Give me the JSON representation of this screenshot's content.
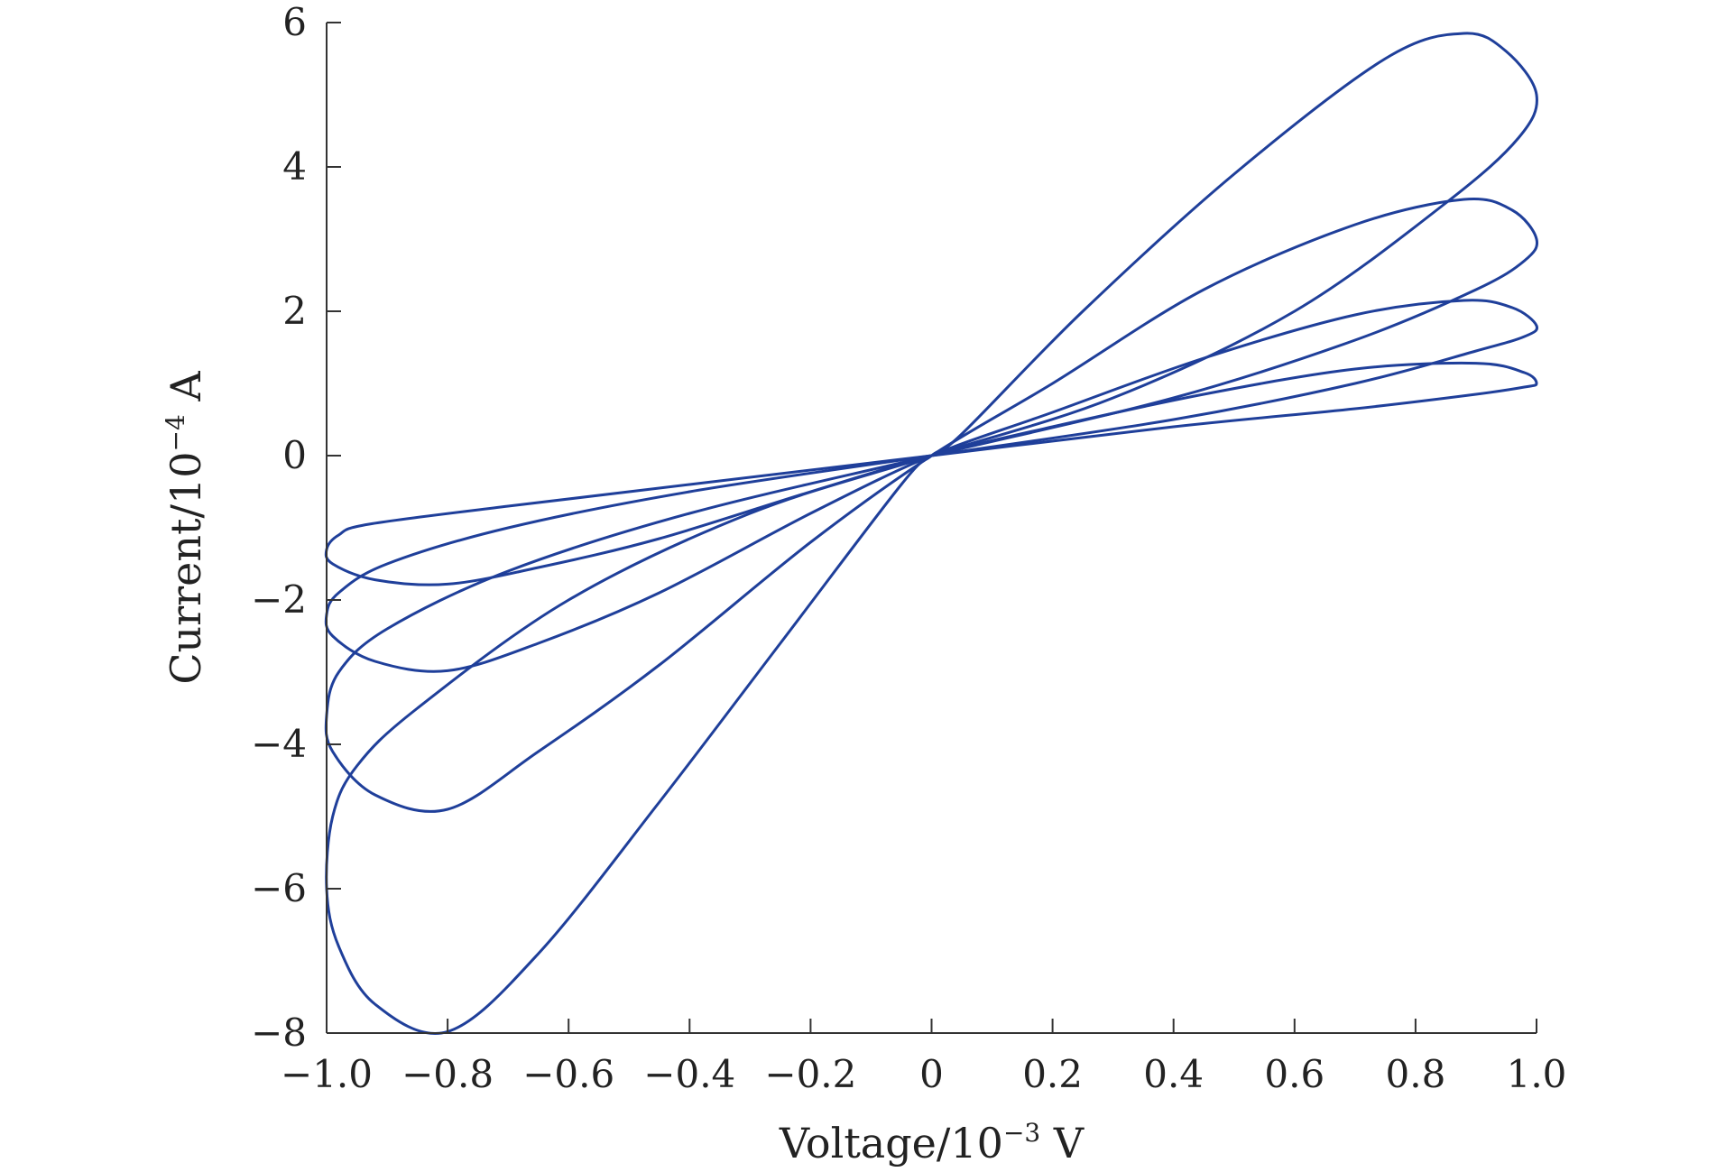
{
  "chart_data": {
    "type": "line",
    "title": "",
    "xlabel": {
      "base": "Voltage/10",
      "exp": "−3",
      "unit": " V"
    },
    "ylabel": {
      "base": "Current/10",
      "exp": "−4",
      "unit": " A"
    },
    "xlim": [
      -1.0,
      1.0
    ],
    "ylim": [
      -8,
      6
    ],
    "xticks": [
      {
        "value": -1.0,
        "label": "−1.0"
      },
      {
        "value": -0.8,
        "label": "−0.8"
      },
      {
        "value": -0.6,
        "label": "−0.6"
      },
      {
        "value": -0.4,
        "label": "−0.4"
      },
      {
        "value": -0.2,
        "label": "−0.2"
      },
      {
        "value": 0.0,
        "label": "0"
      },
      {
        "value": 0.2,
        "label": "0.2"
      },
      {
        "value": 0.4,
        "label": "0.4"
      },
      {
        "value": 0.6,
        "label": "0.6"
      },
      {
        "value": 0.8,
        "label": "0.8"
      },
      {
        "value": 1.0,
        "label": "1.0"
      }
    ],
    "yticks": [
      {
        "value": -8,
        "label": "−8"
      },
      {
        "value": -6,
        "label": "−6"
      },
      {
        "value": -4,
        "label": "−4"
      },
      {
        "value": -2,
        "label": "−2"
      },
      {
        "value": 0,
        "label": "0"
      },
      {
        "value": 2,
        "label": "2"
      },
      {
        "value": 4,
        "label": "4"
      },
      {
        "value": 6,
        "label": "6"
      }
    ],
    "grid": false,
    "legend": "none",
    "line_color": "#1f3f9a",
    "series": [
      {
        "loop": 1,
        "points": [
          [
            1.0,
            5.0
          ],
          [
            0.95,
            5.6
          ],
          [
            0.88,
            5.85
          ],
          [
            0.75,
            5.5
          ],
          [
            0.5,
            3.9
          ],
          [
            0.25,
            2.0
          ],
          [
            0.05,
            0.3
          ],
          [
            0.0,
            0.0
          ],
          [
            -0.05,
            -0.4
          ],
          [
            -0.25,
            -2.6
          ],
          [
            -0.45,
            -4.8
          ],
          [
            -0.65,
            -6.9
          ],
          [
            -0.8,
            -7.98
          ],
          [
            -0.92,
            -7.6
          ],
          [
            -0.98,
            -6.8
          ],
          [
            -1.0,
            -6.0
          ],
          [
            -0.99,
            -5.0
          ],
          [
            -0.95,
            -4.3
          ],
          [
            -0.85,
            -3.5
          ],
          [
            -0.6,
            -2.0
          ],
          [
            -0.3,
            -0.8
          ],
          [
            0.0,
            0.0
          ],
          [
            0.3,
            0.8
          ],
          [
            0.6,
            2.0
          ],
          [
            0.85,
            3.5
          ],
          [
            0.97,
            4.4
          ],
          [
            1.0,
            5.0
          ]
        ]
      },
      {
        "loop": 2,
        "points": [
          [
            1.0,
            3.0
          ],
          [
            0.96,
            3.4
          ],
          [
            0.88,
            3.55
          ],
          [
            0.7,
            3.2
          ],
          [
            0.45,
            2.3
          ],
          [
            0.2,
            1.0
          ],
          [
            0.0,
            0.0
          ],
          [
            -0.2,
            -1.2
          ],
          [
            -0.45,
            -2.9
          ],
          [
            -0.65,
            -4.1
          ],
          [
            -0.8,
            -4.9
          ],
          [
            -0.92,
            -4.7
          ],
          [
            -0.99,
            -4.1
          ],
          [
            -1.0,
            -3.6
          ],
          [
            -0.98,
            -3.0
          ],
          [
            -0.9,
            -2.4
          ],
          [
            -0.7,
            -1.6
          ],
          [
            -0.4,
            -0.8
          ],
          [
            0.0,
            0.0
          ],
          [
            0.4,
            0.8
          ],
          [
            0.7,
            1.6
          ],
          [
            0.9,
            2.3
          ],
          [
            0.98,
            2.7
          ],
          [
            1.0,
            3.0
          ]
        ]
      },
      {
        "loop": 3,
        "points": [
          [
            1.0,
            1.8
          ],
          [
            0.96,
            2.05
          ],
          [
            0.88,
            2.15
          ],
          [
            0.7,
            1.95
          ],
          [
            0.45,
            1.35
          ],
          [
            0.2,
            0.6
          ],
          [
            0.0,
            0.0
          ],
          [
            -0.2,
            -0.8
          ],
          [
            -0.45,
            -1.9
          ],
          [
            -0.65,
            -2.6
          ],
          [
            -0.8,
            -2.98
          ],
          [
            -0.92,
            -2.85
          ],
          [
            -0.99,
            -2.5
          ],
          [
            -1.0,
            -2.2
          ],
          [
            -0.98,
            -1.9
          ],
          [
            -0.9,
            -1.5
          ],
          [
            -0.7,
            -1.0
          ],
          [
            -0.4,
            -0.5
          ],
          [
            0.0,
            0.0
          ],
          [
            0.4,
            0.5
          ],
          [
            0.7,
            1.0
          ],
          [
            0.9,
            1.45
          ],
          [
            0.98,
            1.65
          ],
          [
            1.0,
            1.8
          ]
        ]
      },
      {
        "loop": 4,
        "points": [
          [
            1.0,
            1.0
          ],
          [
            0.98,
            1.15
          ],
          [
            0.9,
            1.28
          ],
          [
            0.7,
            1.2
          ],
          [
            0.45,
            0.85
          ],
          [
            0.2,
            0.4
          ],
          [
            0.0,
            0.0
          ],
          [
            -0.2,
            -0.5
          ],
          [
            -0.45,
            -1.15
          ],
          [
            -0.65,
            -1.55
          ],
          [
            -0.8,
            -1.78
          ],
          [
            -0.92,
            -1.72
          ],
          [
            -0.99,
            -1.5
          ],
          [
            -1.0,
            -1.3
          ],
          [
            -0.98,
            -1.1
          ],
          [
            -0.93,
            -0.95
          ],
          [
            -0.7,
            -0.7
          ],
          [
            -0.4,
            -0.4
          ],
          [
            0.0,
            0.0
          ],
          [
            0.4,
            0.4
          ],
          [
            0.7,
            0.65
          ],
          [
            0.9,
            0.85
          ],
          [
            0.98,
            0.95
          ],
          [
            1.0,
            1.0
          ]
        ]
      }
    ]
  }
}
